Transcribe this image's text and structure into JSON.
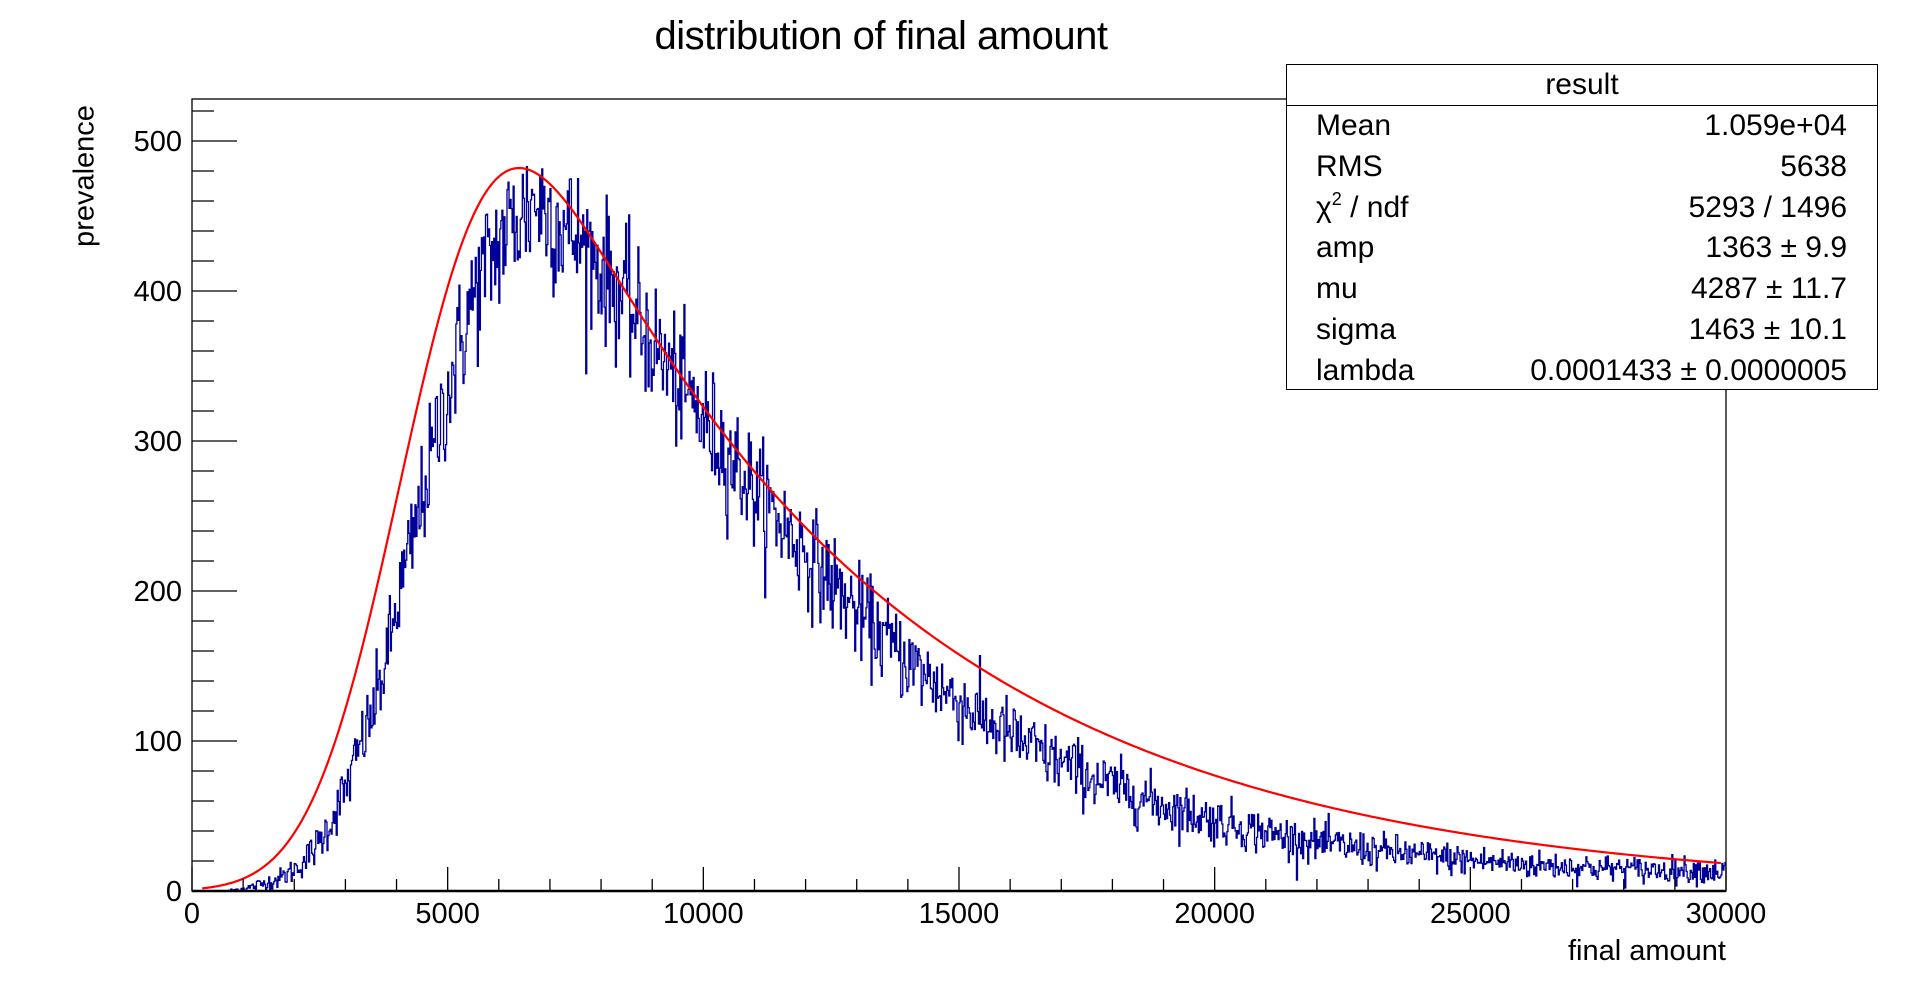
{
  "chart_data": {
    "type": "histogram",
    "title": "distribution of final amount",
    "xlabel": "final amount",
    "ylabel": "prevalence",
    "xlim": [
      0,
      30000
    ],
    "ylim": [
      0,
      528
    ],
    "x_ticks": [
      0,
      5000,
      10000,
      15000,
      20000,
      25000,
      30000
    ],
    "x_tick_labels": [
      "0",
      "5000",
      "10000",
      "15000",
      "20000",
      "25000",
      "30000"
    ],
    "y_ticks": [
      0,
      100,
      200,
      300,
      400,
      500
    ],
    "y_tick_labels": [
      "0",
      "100",
      "200",
      "300",
      "400",
      "500"
    ],
    "grid": false,
    "colors": {
      "histogram": "#000099",
      "fit": "#ff0000",
      "axes": "#000000"
    },
    "histogram": {
      "name": "final amount",
      "bin_width": 200,
      "x_start": 0,
      "values": [
        0,
        0,
        0,
        0,
        1,
        2,
        4,
        6,
        8,
        12,
        17,
        24,
        33,
        45,
        60,
        76,
        98,
        115,
        140,
        170,
        205,
        230,
        262,
        290,
        320,
        345,
        372,
        395,
        412,
        425,
        438,
        445,
        452,
        460,
        455,
        448,
        442,
        436,
        428,
        420,
        412,
        402,
        392,
        380,
        372,
        360,
        350,
        338,
        330,
        320,
        308,
        300,
        290,
        282,
        272,
        262,
        255,
        246,
        238,
        230,
        222,
        214,
        206,
        198,
        190,
        182,
        176,
        170,
        163,
        157,
        150,
        145,
        140,
        134,
        129,
        124,
        119,
        114,
        110,
        106,
        102,
        98,
        94,
        90,
        87,
        84,
        81,
        77,
        74,
        71,
        69,
        66,
        63,
        61,
        58,
        56,
        54,
        52,
        50,
        48,
        46,
        45,
        43,
        41,
        40,
        38,
        37,
        35,
        34,
        33,
        32,
        31,
        30,
        29,
        28,
        27,
        26,
        26,
        25,
        24,
        23,
        23,
        22,
        21,
        21,
        20,
        20,
        19,
        19,
        18,
        18,
        17,
        17,
        17,
        16,
        16,
        16,
        15,
        15,
        15,
        15,
        14,
        14,
        14,
        14,
        14,
        14,
        14,
        13,
        13
      ]
    },
    "fit": {
      "name": "fit",
      "function": "exponentially modified gaussian",
      "range": [
        200,
        29900
      ],
      "peak": {
        "x": 6400,
        "y": 482
      }
    },
    "stats_box": {
      "title": "result",
      "rows": [
        {
          "label": "Mean",
          "value": "1.059e+04"
        },
        {
          "label": "RMS",
          "value": "5638"
        },
        {
          "label": "χ",
          "label_sup": "2",
          "label_suffix": " / ndf",
          "value": "5293 / 1496"
        },
        {
          "label": "amp",
          "value": "1363 ± 9.9"
        },
        {
          "label": "mu",
          "value": "4287 ± 11.7"
        },
        {
          "label": "sigma",
          "value": "1463 ± 10.1"
        },
        {
          "label": "lambda",
          "value": "0.0001433 ± 0.0000005"
        }
      ]
    },
    "fit_parameters": {
      "amp": 1363,
      "mu": 4287,
      "sigma": 1463,
      "lambda": 0.0001433
    }
  }
}
